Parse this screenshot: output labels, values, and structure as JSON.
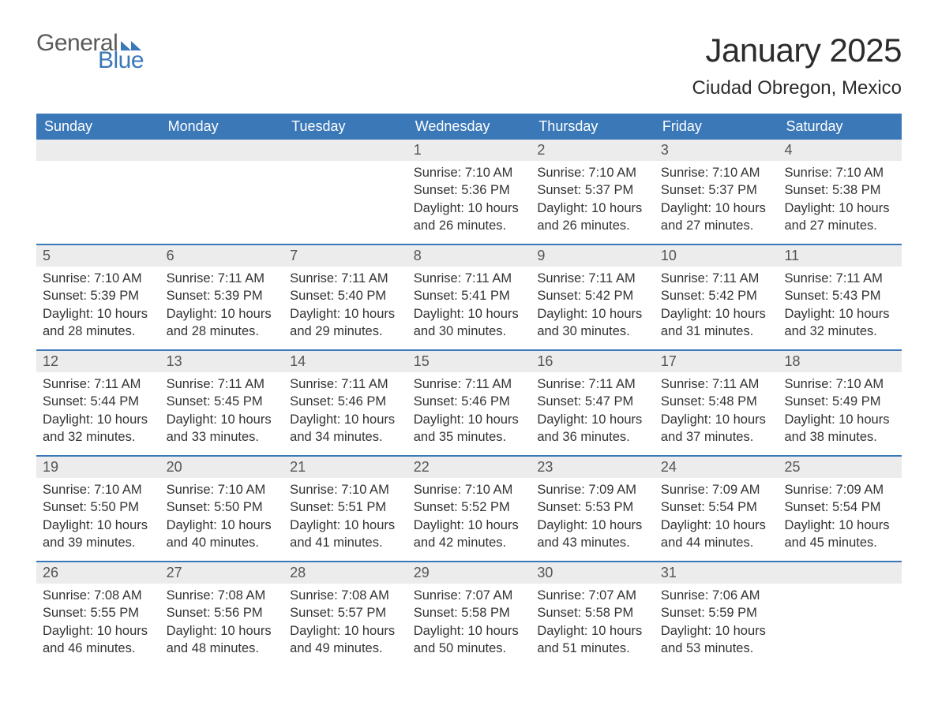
{
  "logo": {
    "general": "General",
    "blue": "Blue",
    "flag_color": "#3a78b8"
  },
  "title": "January 2025",
  "location": "Ciudad Obregon, Mexico",
  "colors": {
    "header_bg": "#3a78b8",
    "header_text": "#ffffff",
    "daynum_bg": "#ececec",
    "daynum_text": "#555555",
    "body_text": "#333333",
    "week_rule": "#3a78b8",
    "page_bg": "#ffffff"
  },
  "typography": {
    "title_fontsize": 42,
    "location_fontsize": 24,
    "header_fontsize": 18,
    "daynum_fontsize": 18,
    "info_fontsize": 16.5,
    "font_family": "Arial"
  },
  "day_headers": [
    "Sunday",
    "Monday",
    "Tuesday",
    "Wednesday",
    "Thursday",
    "Friday",
    "Saturday"
  ],
  "weeks": [
    [
      {
        "day": "",
        "sunrise": "",
        "sunset": "",
        "daylight": ""
      },
      {
        "day": "",
        "sunrise": "",
        "sunset": "",
        "daylight": ""
      },
      {
        "day": "",
        "sunrise": "",
        "sunset": "",
        "daylight": ""
      },
      {
        "day": "1",
        "sunrise": "Sunrise: 7:10 AM",
        "sunset": "Sunset: 5:36 PM",
        "daylight": "Daylight: 10 hours and 26 minutes."
      },
      {
        "day": "2",
        "sunrise": "Sunrise: 7:10 AM",
        "sunset": "Sunset: 5:37 PM",
        "daylight": "Daylight: 10 hours and 26 minutes."
      },
      {
        "day": "3",
        "sunrise": "Sunrise: 7:10 AM",
        "sunset": "Sunset: 5:37 PM",
        "daylight": "Daylight: 10 hours and 27 minutes."
      },
      {
        "day": "4",
        "sunrise": "Sunrise: 7:10 AM",
        "sunset": "Sunset: 5:38 PM",
        "daylight": "Daylight: 10 hours and 27 minutes."
      }
    ],
    [
      {
        "day": "5",
        "sunrise": "Sunrise: 7:10 AM",
        "sunset": "Sunset: 5:39 PM",
        "daylight": "Daylight: 10 hours and 28 minutes."
      },
      {
        "day": "6",
        "sunrise": "Sunrise: 7:11 AM",
        "sunset": "Sunset: 5:39 PM",
        "daylight": "Daylight: 10 hours and 28 minutes."
      },
      {
        "day": "7",
        "sunrise": "Sunrise: 7:11 AM",
        "sunset": "Sunset: 5:40 PM",
        "daylight": "Daylight: 10 hours and 29 minutes."
      },
      {
        "day": "8",
        "sunrise": "Sunrise: 7:11 AM",
        "sunset": "Sunset: 5:41 PM",
        "daylight": "Daylight: 10 hours and 30 minutes."
      },
      {
        "day": "9",
        "sunrise": "Sunrise: 7:11 AM",
        "sunset": "Sunset: 5:42 PM",
        "daylight": "Daylight: 10 hours and 30 minutes."
      },
      {
        "day": "10",
        "sunrise": "Sunrise: 7:11 AM",
        "sunset": "Sunset: 5:42 PM",
        "daylight": "Daylight: 10 hours and 31 minutes."
      },
      {
        "day": "11",
        "sunrise": "Sunrise: 7:11 AM",
        "sunset": "Sunset: 5:43 PM",
        "daylight": "Daylight: 10 hours and 32 minutes."
      }
    ],
    [
      {
        "day": "12",
        "sunrise": "Sunrise: 7:11 AM",
        "sunset": "Sunset: 5:44 PM",
        "daylight": "Daylight: 10 hours and 32 minutes."
      },
      {
        "day": "13",
        "sunrise": "Sunrise: 7:11 AM",
        "sunset": "Sunset: 5:45 PM",
        "daylight": "Daylight: 10 hours and 33 minutes."
      },
      {
        "day": "14",
        "sunrise": "Sunrise: 7:11 AM",
        "sunset": "Sunset: 5:46 PM",
        "daylight": "Daylight: 10 hours and 34 minutes."
      },
      {
        "day": "15",
        "sunrise": "Sunrise: 7:11 AM",
        "sunset": "Sunset: 5:46 PM",
        "daylight": "Daylight: 10 hours and 35 minutes."
      },
      {
        "day": "16",
        "sunrise": "Sunrise: 7:11 AM",
        "sunset": "Sunset: 5:47 PM",
        "daylight": "Daylight: 10 hours and 36 minutes."
      },
      {
        "day": "17",
        "sunrise": "Sunrise: 7:11 AM",
        "sunset": "Sunset: 5:48 PM",
        "daylight": "Daylight: 10 hours and 37 minutes."
      },
      {
        "day": "18",
        "sunrise": "Sunrise: 7:10 AM",
        "sunset": "Sunset: 5:49 PM",
        "daylight": "Daylight: 10 hours and 38 minutes."
      }
    ],
    [
      {
        "day": "19",
        "sunrise": "Sunrise: 7:10 AM",
        "sunset": "Sunset: 5:50 PM",
        "daylight": "Daylight: 10 hours and 39 minutes."
      },
      {
        "day": "20",
        "sunrise": "Sunrise: 7:10 AM",
        "sunset": "Sunset: 5:50 PM",
        "daylight": "Daylight: 10 hours and 40 minutes."
      },
      {
        "day": "21",
        "sunrise": "Sunrise: 7:10 AM",
        "sunset": "Sunset: 5:51 PM",
        "daylight": "Daylight: 10 hours and 41 minutes."
      },
      {
        "day": "22",
        "sunrise": "Sunrise: 7:10 AM",
        "sunset": "Sunset: 5:52 PM",
        "daylight": "Daylight: 10 hours and 42 minutes."
      },
      {
        "day": "23",
        "sunrise": "Sunrise: 7:09 AM",
        "sunset": "Sunset: 5:53 PM",
        "daylight": "Daylight: 10 hours and 43 minutes."
      },
      {
        "day": "24",
        "sunrise": "Sunrise: 7:09 AM",
        "sunset": "Sunset: 5:54 PM",
        "daylight": "Daylight: 10 hours and 44 minutes."
      },
      {
        "day": "25",
        "sunrise": "Sunrise: 7:09 AM",
        "sunset": "Sunset: 5:54 PM",
        "daylight": "Daylight: 10 hours and 45 minutes."
      }
    ],
    [
      {
        "day": "26",
        "sunrise": "Sunrise: 7:08 AM",
        "sunset": "Sunset: 5:55 PM",
        "daylight": "Daylight: 10 hours and 46 minutes."
      },
      {
        "day": "27",
        "sunrise": "Sunrise: 7:08 AM",
        "sunset": "Sunset: 5:56 PM",
        "daylight": "Daylight: 10 hours and 48 minutes."
      },
      {
        "day": "28",
        "sunrise": "Sunrise: 7:08 AM",
        "sunset": "Sunset: 5:57 PM",
        "daylight": "Daylight: 10 hours and 49 minutes."
      },
      {
        "day": "29",
        "sunrise": "Sunrise: 7:07 AM",
        "sunset": "Sunset: 5:58 PM",
        "daylight": "Daylight: 10 hours and 50 minutes."
      },
      {
        "day": "30",
        "sunrise": "Sunrise: 7:07 AM",
        "sunset": "Sunset: 5:58 PM",
        "daylight": "Daylight: 10 hours and 51 minutes."
      },
      {
        "day": "31",
        "sunrise": "Sunrise: 7:06 AM",
        "sunset": "Sunset: 5:59 PM",
        "daylight": "Daylight: 10 hours and 53 minutes."
      },
      {
        "day": "",
        "sunrise": "",
        "sunset": "",
        "daylight": ""
      }
    ]
  ]
}
